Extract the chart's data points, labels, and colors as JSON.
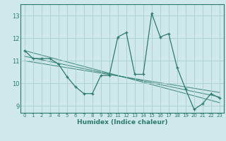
{
  "title": "",
  "xlabel": "Humidex (Indice chaleur)",
  "ylabel": "",
  "bg_color": "#cfe8ec",
  "grid_color": "#a8cdd4",
  "line_color": "#2d7a6c",
  "xlim": [
    -0.5,
    23.5
  ],
  "ylim": [
    8.7,
    13.5
  ],
  "yticks": [
    9,
    10,
    11,
    12,
    13
  ],
  "xticks": [
    0,
    1,
    2,
    3,
    4,
    5,
    6,
    7,
    8,
    9,
    10,
    11,
    12,
    13,
    14,
    15,
    16,
    17,
    18,
    19,
    20,
    21,
    22,
    23
  ],
  "series": [
    [
      0,
      11.45
    ],
    [
      1,
      11.1
    ],
    [
      2,
      11.1
    ],
    [
      3,
      11.1
    ],
    [
      4,
      10.85
    ],
    [
      5,
      10.3
    ],
    [
      6,
      9.85
    ],
    [
      7,
      9.55
    ],
    [
      8,
      9.55
    ],
    [
      9,
      10.35
    ],
    [
      10,
      10.35
    ],
    [
      11,
      12.05
    ],
    [
      12,
      12.25
    ],
    [
      13,
      10.4
    ],
    [
      14,
      10.4
    ],
    [
      15,
      13.1
    ],
    [
      16,
      12.05
    ],
    [
      17,
      12.2
    ],
    [
      18,
      10.7
    ],
    [
      19,
      9.75
    ],
    [
      20,
      8.85
    ],
    [
      21,
      9.1
    ],
    [
      22,
      9.55
    ],
    [
      23,
      9.35
    ]
  ],
  "trend_lines": [
    {
      "x": [
        0,
        23
      ],
      "y": [
        11.45,
        9.15
      ]
    },
    {
      "x": [
        0,
        23
      ],
      "y": [
        11.2,
        9.4
      ]
    },
    {
      "x": [
        0,
        23
      ],
      "y": [
        11.0,
        9.6
      ]
    }
  ]
}
